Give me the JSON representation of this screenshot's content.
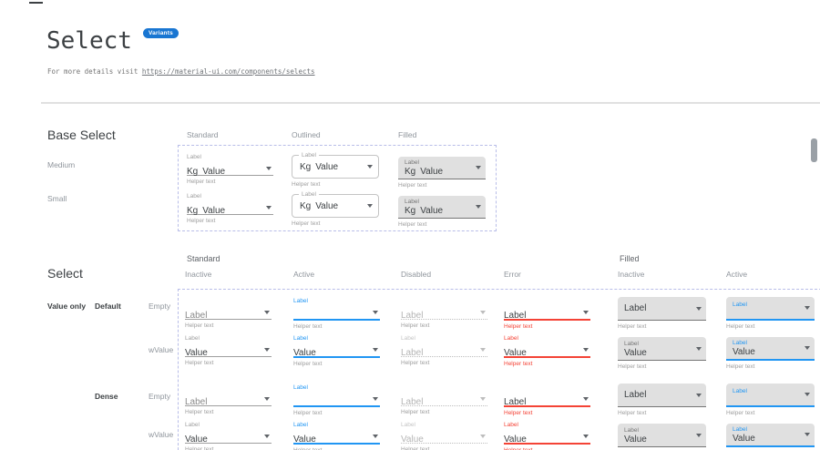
{
  "header": {
    "title": "Select",
    "badge": "Variants",
    "intro_text": "For more details visit",
    "intro_link": "https://material-ui.com/components/selects"
  },
  "base_select": {
    "heading": "Base Select",
    "column_headers": [
      "Standard",
      "Outlined",
      "Filled"
    ],
    "row_headers": [
      "Medium",
      "Small"
    ],
    "control": {
      "label": "Label",
      "adornment": "Kg",
      "value": "Value",
      "helper": "Helper text"
    }
  },
  "select_section": {
    "heading": "Select",
    "group_headers": [
      "Standard",
      "Filled"
    ],
    "column_headers": [
      "Inactive",
      "Active",
      "Disabled",
      "Error",
      "Inactive",
      "Active"
    ],
    "columns": [
      {
        "variant": "standard",
        "state": "inactive"
      },
      {
        "variant": "standard",
        "state": "active"
      },
      {
        "variant": "standard",
        "state": "disabled"
      },
      {
        "variant": "standard",
        "state": "error"
      },
      {
        "variant": "filled",
        "state": "inactive"
      },
      {
        "variant": "filled",
        "state": "active"
      }
    ],
    "row_group_label": "Value only",
    "density_labels": [
      "Default",
      "Dense"
    ],
    "variant_labels": [
      "Empty",
      "wValue"
    ],
    "helper": "Helper text",
    "rows": [
      {
        "id": "default-empty",
        "density": "Default",
        "kind": "Empty",
        "cells": [
          {
            "caption": "",
            "value": "Label",
            "muted": true
          },
          {
            "caption": "Label",
            "value": ""
          },
          {
            "caption": "",
            "value": "Label"
          },
          {
            "caption": "",
            "value": "Label"
          },
          {
            "caption": "",
            "value": "Label"
          },
          {
            "caption": "Label",
            "value": ""
          }
        ]
      },
      {
        "id": "default-wvalue",
        "density": "Default",
        "kind": "wValue",
        "cells": [
          {
            "caption": "Label",
            "value": "Value"
          },
          {
            "caption": "Label",
            "value": "Value"
          },
          {
            "caption": "Label",
            "value": "Label"
          },
          {
            "caption": "Label",
            "value": "Value"
          },
          {
            "caption": "Label",
            "value": "Value"
          },
          {
            "caption": "Label",
            "value": "Value"
          }
        ]
      },
      {
        "id": "dense-empty",
        "density": "Dense",
        "kind": "Empty",
        "cells": [
          {
            "caption": "",
            "value": "Label",
            "muted": true
          },
          {
            "caption": "Label",
            "value": ""
          },
          {
            "caption": "",
            "value": "Label"
          },
          {
            "caption": "",
            "value": "Label"
          },
          {
            "caption": "",
            "value": "Label"
          },
          {
            "caption": "Label",
            "value": ""
          }
        ]
      },
      {
        "id": "dense-wvalue",
        "density": "Dense",
        "kind": "wValue",
        "cells": [
          {
            "caption": "Label",
            "value": "Value"
          },
          {
            "caption": "Label",
            "value": "Value"
          },
          {
            "caption": "Label",
            "value": "Value"
          },
          {
            "caption": "Label",
            "value": "Value"
          },
          {
            "caption": "Label",
            "value": "Value"
          },
          {
            "caption": "Label",
            "value": "Value"
          }
        ]
      }
    ]
  },
  "colors": {
    "accent": "#2196f3",
    "error": "#f44336",
    "badge": "#1976d2",
    "filled_bg": "#e0e0e0",
    "dashed_border": "#b8bde8"
  }
}
